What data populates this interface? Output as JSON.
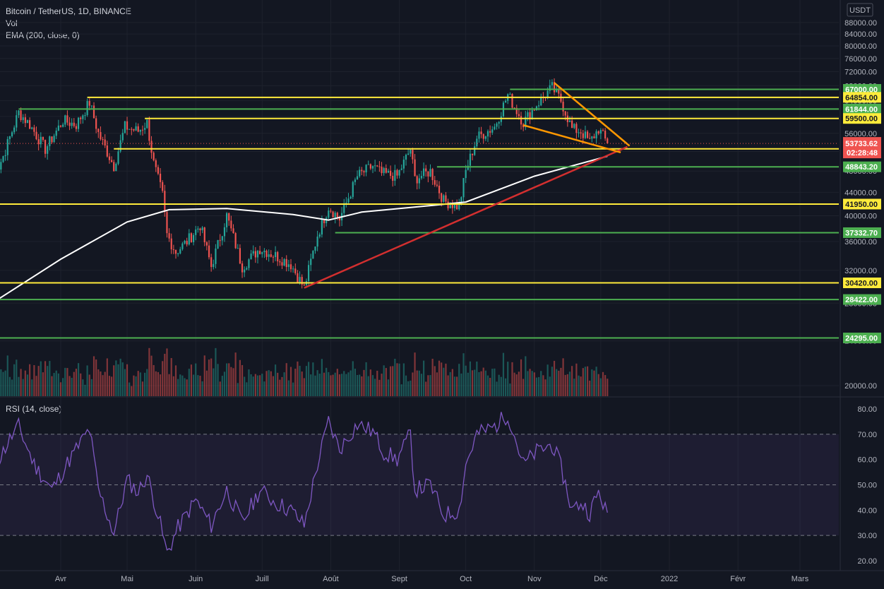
{
  "legend": {
    "symbol": "Bitcoin / TetherUS, 1D, BINANCE",
    "vol": "Vol",
    "ema": "EMA (200, close, 0)",
    "rsi": "RSI (14, close)",
    "currency": "USDT"
  },
  "colors": {
    "background": "#131722",
    "grid": "#1e222d",
    "up": "#26a69a",
    "down": "#ef5350",
    "yellow_level": "#ffeb3b",
    "green_level": "#4caf50",
    "trendline": "#d32f2f",
    "wedge": "#ff9800",
    "ema": "#ffffff",
    "rsi": "#7e57c2"
  },
  "chart_data": [
    {
      "type": "candlestick",
      "title": "Bitcoin / TetherUS, 1D, BINANCE",
      "y_scale": "log",
      "ylim": [
        19000,
        88000
      ],
      "y_ticks": [
        20000,
        24000,
        28000,
        32000,
        36000,
        40000,
        44000,
        48000,
        52000,
        56000,
        60000,
        64000,
        68000,
        72000,
        76000,
        80000,
        84000,
        88000
      ],
      "x_labels": [
        {
          "label": "Avr",
          "date": "2021-04-01"
        },
        {
          "label": "Mai",
          "date": "2021-05-01"
        },
        {
          "label": "Juin",
          "date": "2021-06-01"
        },
        {
          "label": "Juill",
          "date": "2021-07-01"
        },
        {
          "label": "Août",
          "date": "2021-08-01"
        },
        {
          "label": "Sept",
          "date": "2021-09-01"
        },
        {
          "label": "Oct",
          "date": "2021-10-01"
        },
        {
          "label": "Nov",
          "date": "2021-11-01"
        },
        {
          "label": "Déc",
          "date": "2021-12-01"
        },
        {
          "label": "2022",
          "date": "2022-01-01"
        },
        {
          "label": "Févr",
          "date": "2022-02-01"
        },
        {
          "label": "Mars",
          "date": "2022-03-01"
        }
      ],
      "close_path": [
        {
          "date": "2021-03-01",
          "close": 46000
        },
        {
          "date": "2021-03-06",
          "close": 51000
        },
        {
          "date": "2021-03-13",
          "close": 61000
        },
        {
          "date": "2021-03-18",
          "close": 58000
        },
        {
          "date": "2021-03-25",
          "close": 52500
        },
        {
          "date": "2021-04-02",
          "close": 59000
        },
        {
          "date": "2021-04-08",
          "close": 58000
        },
        {
          "date": "2021-04-14",
          "close": 63500
        },
        {
          "date": "2021-04-18",
          "close": 56000
        },
        {
          "date": "2021-04-25",
          "close": 49000
        },
        {
          "date": "2021-04-30",
          "close": 57500
        },
        {
          "date": "2021-05-06",
          "close": 56500
        },
        {
          "date": "2021-05-10",
          "close": 58500
        },
        {
          "date": "2021-05-13",
          "close": 49500
        },
        {
          "date": "2021-05-17",
          "close": 43500
        },
        {
          "date": "2021-05-19",
          "close": 37000
        },
        {
          "date": "2021-05-23",
          "close": 34500
        },
        {
          "date": "2021-05-28",
          "close": 36000
        },
        {
          "date": "2021-06-03",
          "close": 38500
        },
        {
          "date": "2021-06-08",
          "close": 32500
        },
        {
          "date": "2021-06-15",
          "close": 40000
        },
        {
          "date": "2021-06-22",
          "close": 32500
        },
        {
          "date": "2021-06-30",
          "close": 35000
        },
        {
          "date": "2021-07-07",
          "close": 34000
        },
        {
          "date": "2021-07-14",
          "close": 32800
        },
        {
          "date": "2021-07-20",
          "close": 29800
        },
        {
          "date": "2021-07-26",
          "close": 37000
        },
        {
          "date": "2021-07-31",
          "close": 41500
        },
        {
          "date": "2021-08-05",
          "close": 39500
        },
        {
          "date": "2021-08-13",
          "close": 47000
        },
        {
          "date": "2021-08-20",
          "close": 49000
        },
        {
          "date": "2021-08-24",
          "close": 47500
        },
        {
          "date": "2021-08-31",
          "close": 47000
        },
        {
          "date": "2021-09-06",
          "close": 52500
        },
        {
          "date": "2021-09-08",
          "close": 46500
        },
        {
          "date": "2021-09-15",
          "close": 48000
        },
        {
          "date": "2021-09-21",
          "close": 42500
        },
        {
          "date": "2021-09-28",
          "close": 41500
        },
        {
          "date": "2021-10-01",
          "close": 48000
        },
        {
          "date": "2021-10-06",
          "close": 55000
        },
        {
          "date": "2021-10-14",
          "close": 57500
        },
        {
          "date": "2021-10-20",
          "close": 65500
        },
        {
          "date": "2021-10-27",
          "close": 58500
        },
        {
          "date": "2021-11-02",
          "close": 63000
        },
        {
          "date": "2021-11-09",
          "close": 67500
        },
        {
          "date": "2021-11-13",
          "close": 64000
        },
        {
          "date": "2021-11-18",
          "close": 57000
        },
        {
          "date": "2021-11-22",
          "close": 56500
        },
        {
          "date": "2021-11-26",
          "close": 54000
        },
        {
          "date": "2021-11-30",
          "close": 57000
        },
        {
          "date": "2021-12-04",
          "close": 53733
        }
      ],
      "ema_200": [
        {
          "date": "2021-03-01",
          "close": 28000
        },
        {
          "date": "2021-04-01",
          "close": 33500
        },
        {
          "date": "2021-05-01",
          "close": 39000
        },
        {
          "date": "2021-05-20",
          "close": 41000
        },
        {
          "date": "2021-06-15",
          "close": 41200
        },
        {
          "date": "2021-07-15",
          "close": 40200
        },
        {
          "date": "2021-07-31",
          "close": 39300
        },
        {
          "date": "2021-08-15",
          "close": 40600
        },
        {
          "date": "2021-09-15",
          "close": 41700
        },
        {
          "date": "2021-10-01",
          "close": 42300
        },
        {
          "date": "2021-11-01",
          "close": 47000
        },
        {
          "date": "2021-12-04",
          "close": 51000
        }
      ],
      "levels": [
        {
          "label": "67000.00",
          "value": 67000,
          "color": "green",
          "from": "2021-10-21"
        },
        {
          "label": "64854.00",
          "value": 64854,
          "color": "yellow",
          "from": "2021-04-13"
        },
        {
          "label": "61844.00",
          "value": 61844,
          "color": "green",
          "from": "2021-03-13"
        },
        {
          "label": "59500.00",
          "value": 59500,
          "color": "yellow",
          "from": "2021-05-09"
        },
        {
          "label": "52555.98",
          "value": 52555.98,
          "color": "yellow",
          "from": "2021-04-25"
        },
        {
          "label": "48843.20",
          "value": 48843.2,
          "color": "green",
          "from": "2021-09-18"
        },
        {
          "label": "41950.00",
          "value": 41950,
          "color": "yellow",
          "from": "2021-03-01"
        },
        {
          "label": "37332.70",
          "value": 37332.7,
          "color": "green",
          "from": "2021-08-03"
        },
        {
          "label": "30420.00",
          "value": 30420,
          "color": "yellow",
          "from": "2021-03-01"
        },
        {
          "label": "28422.00",
          "value": 28422,
          "color": "green",
          "from": "2021-03-01"
        },
        {
          "label": "24295.00",
          "value": 24295,
          "color": "green",
          "from": "2021-03-01"
        }
      ],
      "last_price": {
        "label": "53733.62",
        "countdown": "02:28:48",
        "value": 53733.62
      },
      "trendlines": [
        {
          "color": "red",
          "from": {
            "date": "2021-07-20",
            "value": 29800
          },
          "to": {
            "date": "2021-12-13",
            "value": 53000
          }
        },
        {
          "color": "orange",
          "from": {
            "date": "2021-11-10",
            "value": 68800
          },
          "to": {
            "date": "2021-12-14",
            "value": 53200
          }
        },
        {
          "color": "orange",
          "from": {
            "date": "2021-10-27",
            "value": 57900
          },
          "to": {
            "date": "2021-12-10",
            "value": 51800
          }
        }
      ]
    },
    {
      "type": "line",
      "title": "RSI (14, close)",
      "ylim": [
        15,
        85
      ],
      "y_ticks": [
        20,
        30,
        40,
        50,
        60,
        70,
        80
      ],
      "bands": [
        30,
        50,
        70
      ],
      "series": [
        {
          "values": [
            {
              "date": "2021-03-01",
              "close": 55
            },
            {
              "date": "2021-03-09",
              "close": 68
            },
            {
              "date": "2021-03-13",
              "close": 73
            },
            {
              "date": "2021-03-20",
              "close": 58
            },
            {
              "date": "2021-03-28",
              "close": 48
            },
            {
              "date": "2021-04-05",
              "close": 60
            },
            {
              "date": "2021-04-14",
              "close": 72
            },
            {
              "date": "2021-04-18",
              "close": 48
            },
            {
              "date": "2021-04-25",
              "close": 31
            },
            {
              "date": "2021-05-01",
              "close": 52
            },
            {
              "date": "2021-05-06",
              "close": 47
            },
            {
              "date": "2021-05-10",
              "close": 54
            },
            {
              "date": "2021-05-15",
              "close": 38
            },
            {
              "date": "2021-05-19",
              "close": 23
            },
            {
              "date": "2021-05-24",
              "close": 33
            },
            {
              "date": "2021-06-01",
              "close": 44
            },
            {
              "date": "2021-06-08",
              "close": 34
            },
            {
              "date": "2021-06-15",
              "close": 48
            },
            {
              "date": "2021-06-22",
              "close": 35
            },
            {
              "date": "2021-06-30",
              "close": 48
            },
            {
              "date": "2021-07-07",
              "close": 43
            },
            {
              "date": "2021-07-14",
              "close": 40
            },
            {
              "date": "2021-07-20",
              "close": 34
            },
            {
              "date": "2021-07-26",
              "close": 58
            },
            {
              "date": "2021-07-31",
              "close": 75
            },
            {
              "date": "2021-08-05",
              "close": 64
            },
            {
              "date": "2021-08-13",
              "close": 74
            },
            {
              "date": "2021-08-20",
              "close": 71
            },
            {
              "date": "2021-08-25",
              "close": 63
            },
            {
              "date": "2021-08-31",
              "close": 60
            },
            {
              "date": "2021-09-06",
              "close": 70
            },
            {
              "date": "2021-09-08",
              "close": 48
            },
            {
              "date": "2021-09-15",
              "close": 50
            },
            {
              "date": "2021-09-21",
              "close": 38
            },
            {
              "date": "2021-09-28",
              "close": 40
            },
            {
              "date": "2021-10-01",
              "close": 58
            },
            {
              "date": "2021-10-06",
              "close": 70
            },
            {
              "date": "2021-10-14",
              "close": 73
            },
            {
              "date": "2021-10-20",
              "close": 78
            },
            {
              "date": "2021-10-27",
              "close": 58
            },
            {
              "date": "2021-11-02",
              "close": 63
            },
            {
              "date": "2021-11-09",
              "close": 66
            },
            {
              "date": "2021-11-13",
              "close": 57
            },
            {
              "date": "2021-11-18",
              "close": 40
            },
            {
              "date": "2021-11-22",
              "close": 43
            },
            {
              "date": "2021-11-26",
              "close": 39
            },
            {
              "date": "2021-11-30",
              "close": 47
            },
            {
              "date": "2021-12-04",
              "close": 39
            }
          ]
        }
      ]
    }
  ],
  "rsi_panel": {
    "currency": ""
  }
}
